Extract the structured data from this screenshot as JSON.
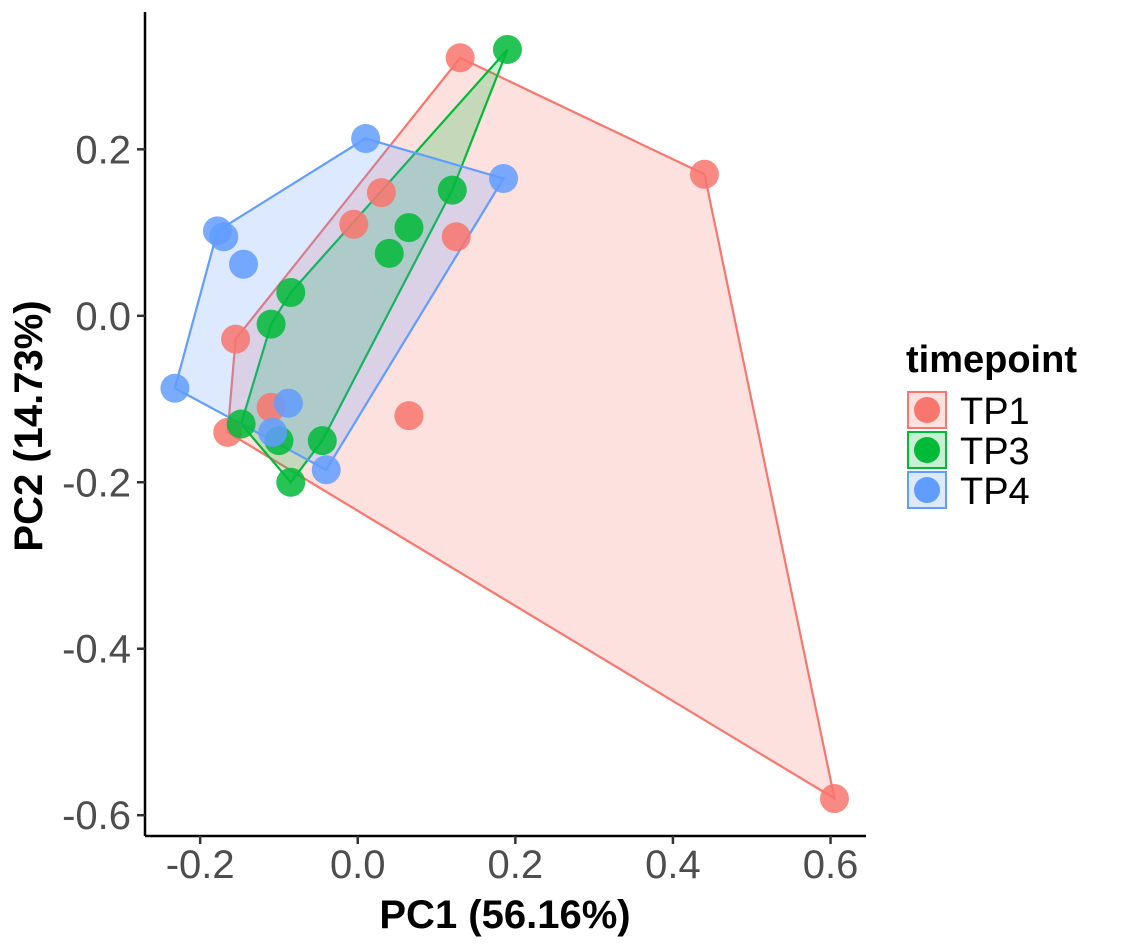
{
  "chart_data": {
    "type": "scatter",
    "xlabel": "PC1 (56.16%)",
    "ylabel": "PC2 (14.73%)",
    "xlim": [
      -0.27,
      0.645
    ],
    "ylim": [
      -0.625,
      0.365
    ],
    "x_ticks": [
      -0.2,
      0.0,
      0.2,
      0.4,
      0.6
    ],
    "x_tick_labels": [
      "-0.2",
      "0.0",
      "0.2",
      "0.4",
      "0.6"
    ],
    "y_ticks": [
      0.2,
      0.0,
      -0.2,
      -0.4,
      -0.6
    ],
    "y_tick_labels": [
      "0.2",
      "0.0",
      "-0.2",
      "-0.4",
      "-0.6"
    ],
    "grid": false,
    "convex_hulls": true,
    "legend_position": "right",
    "legend": {
      "title": "timepoint",
      "entries": [
        "TP1",
        "TP3",
        "TP4"
      ]
    },
    "series": [
      {
        "name": "TP1",
        "color": "#F8766D",
        "points": [
          {
            "x": 0.13,
            "y": 0.31
          },
          {
            "x": 0.44,
            "y": 0.17
          },
          {
            "x": 0.605,
            "y": -0.58
          },
          {
            "x": -0.165,
            "y": -0.14
          },
          {
            "x": -0.155,
            "y": -0.028
          },
          {
            "x": -0.005,
            "y": 0.11
          },
          {
            "x": 0.03,
            "y": 0.148
          },
          {
            "x": 0.125,
            "y": 0.095
          },
          {
            "x": 0.065,
            "y": -0.12
          },
          {
            "x": -0.11,
            "y": -0.11
          }
        ]
      },
      {
        "name": "TP3",
        "color": "#00BA38",
        "points": [
          {
            "x": 0.19,
            "y": 0.32
          },
          {
            "x": 0.12,
            "y": 0.151
          },
          {
            "x": 0.065,
            "y": 0.106
          },
          {
            "x": 0.04,
            "y": 0.075
          },
          {
            "x": -0.085,
            "y": 0.028
          },
          {
            "x": -0.11,
            "y": -0.01
          },
          {
            "x": -0.148,
            "y": -0.13
          },
          {
            "x": -0.1,
            "y": -0.15
          },
          {
            "x": -0.045,
            "y": -0.15
          },
          {
            "x": -0.085,
            "y": -0.2
          }
        ]
      },
      {
        "name": "TP4",
        "color": "#619CFF",
        "points": [
          {
            "x": 0.01,
            "y": 0.213
          },
          {
            "x": 0.185,
            "y": 0.165
          },
          {
            "x": -0.178,
            "y": 0.102
          },
          {
            "x": -0.17,
            "y": 0.095
          },
          {
            "x": -0.145,
            "y": 0.062
          },
          {
            "x": -0.232,
            "y": -0.087
          },
          {
            "x": -0.088,
            "y": -0.105
          },
          {
            "x": -0.108,
            "y": -0.14
          },
          {
            "x": -0.04,
            "y": -0.185
          }
        ]
      }
    ]
  }
}
